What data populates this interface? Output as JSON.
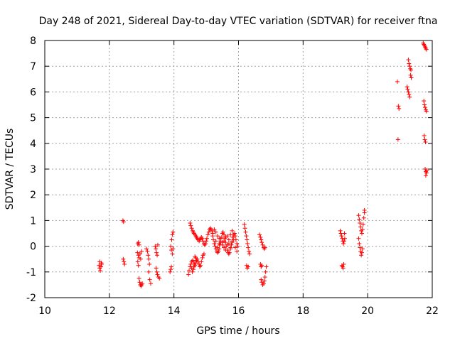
{
  "chart_data": {
    "type": "scatter",
    "title": "Day 248 of 2021, Sidereal Day-to-day VTEC variation (SDTVAR) for receiver ftna",
    "xlabel": "GPS time / hours",
    "ylabel": "SDTVAR / TECUs",
    "xlim": [
      10,
      22
    ],
    "ylim": [
      -2,
      8
    ],
    "x_ticks": [
      10,
      12,
      14,
      16,
      18,
      20,
      22
    ],
    "y_ticks": [
      -2,
      -1,
      0,
      1,
      2,
      3,
      4,
      5,
      6,
      7,
      8
    ],
    "x_tick_labels": [
      "10",
      "12",
      "14",
      "16",
      "18",
      "20",
      "22"
    ],
    "y_tick_labels": [
      "-2",
      "-1",
      "0",
      "1",
      "2",
      "3",
      "4",
      "5",
      "6",
      "7",
      "8"
    ],
    "grid": true,
    "marker": "+",
    "color": "#ff0000",
    "series": [
      {
        "name": "ftna",
        "points": [
          [
            11.68,
            -0.75
          ],
          [
            11.7,
            -0.85
          ],
          [
            11.72,
            -0.95
          ],
          [
            11.74,
            -0.8
          ],
          [
            11.76,
            -0.7
          ],
          [
            11.7,
            -0.6
          ],
          [
            11.75,
            -0.65
          ],
          [
            12.42,
            1.0
          ],
          [
            12.44,
            0.95
          ],
          [
            12.43,
            -0.5
          ],
          [
            12.45,
            -0.6
          ],
          [
            12.47,
            -0.7
          ],
          [
            12.88,
            0.1
          ],
          [
            12.9,
            0.15
          ],
          [
            12.92,
            0.05
          ],
          [
            12.87,
            -0.25
          ],
          [
            12.9,
            -0.35
          ],
          [
            12.92,
            -0.45
          ],
          [
            12.88,
            -0.6
          ],
          [
            12.9,
            -0.75
          ],
          [
            12.92,
            -1.25
          ],
          [
            12.94,
            -1.4
          ],
          [
            12.96,
            -1.5
          ],
          [
            12.98,
            -1.55
          ],
          [
            13.0,
            -1.5
          ],
          [
            13.02,
            -1.45
          ],
          [
            12.95,
            -0.3
          ],
          [
            12.97,
            -0.5
          ],
          [
            13.0,
            -0.2
          ],
          [
            13.15,
            -0.1
          ],
          [
            13.18,
            -0.2
          ],
          [
            13.2,
            -0.35
          ],
          [
            13.22,
            -0.5
          ],
          [
            13.24,
            -0.7
          ],
          [
            13.22,
            -1.0
          ],
          [
            13.25,
            -1.3
          ],
          [
            13.28,
            -1.45
          ],
          [
            13.42,
            0.0
          ],
          [
            13.44,
            -0.1
          ],
          [
            13.46,
            -0.25
          ],
          [
            13.48,
            -0.35
          ],
          [
            13.45,
            -0.85
          ],
          [
            13.47,
            -1.0
          ],
          [
            13.49,
            -1.1
          ],
          [
            13.52,
            -1.2
          ],
          [
            13.55,
            -1.25
          ],
          [
            13.5,
            0.05
          ],
          [
            13.88,
            -1.0
          ],
          [
            13.9,
            -0.9
          ],
          [
            13.92,
            -0.8
          ],
          [
            13.9,
            0.0
          ],
          [
            13.92,
            -0.15
          ],
          [
            13.93,
            0.25
          ],
          [
            13.95,
            0.45
          ],
          [
            13.97,
            0.55
          ],
          [
            13.95,
            -0.3
          ],
          [
            13.97,
            -0.1
          ],
          [
            14.45,
            -1.1
          ],
          [
            14.47,
            -0.95
          ],
          [
            14.5,
            -0.8
          ],
          [
            14.52,
            -0.7
          ],
          [
            14.55,
            -0.6
          ],
          [
            14.58,
            -0.55
          ],
          [
            14.6,
            -0.6
          ],
          [
            14.63,
            -0.7
          ],
          [
            14.65,
            -0.75
          ],
          [
            14.68,
            -0.65
          ],
          [
            14.7,
            -0.55
          ],
          [
            14.72,
            -0.5
          ],
          [
            14.75,
            -0.6
          ],
          [
            14.78,
            -0.7
          ],
          [
            14.8,
            -0.8
          ],
          [
            14.82,
            -0.75
          ],
          [
            14.85,
            -0.6
          ],
          [
            14.88,
            -0.45
          ],
          [
            14.9,
            -0.35
          ],
          [
            14.93,
            -0.3
          ],
          [
            14.5,
            0.9
          ],
          [
            14.52,
            0.8
          ],
          [
            14.55,
            0.7
          ],
          [
            14.58,
            0.6
          ],
          [
            14.6,
            0.55
          ],
          [
            14.62,
            0.5
          ],
          [
            14.65,
            0.45
          ],
          [
            14.68,
            0.4
          ],
          [
            14.7,
            0.35
          ],
          [
            14.72,
            0.3
          ],
          [
            14.75,
            0.25
          ],
          [
            14.78,
            0.2
          ],
          [
            14.8,
            0.25
          ],
          [
            14.82,
            0.3
          ],
          [
            14.85,
            0.35
          ],
          [
            14.88,
            0.3
          ],
          [
            14.9,
            0.2
          ],
          [
            14.93,
            0.1
          ],
          [
            14.95,
            0.05
          ],
          [
            14.98,
            0.1
          ],
          [
            15.0,
            0.2
          ],
          [
            15.02,
            0.3
          ],
          [
            15.05,
            0.45
          ],
          [
            15.08,
            0.55
          ],
          [
            15.1,
            0.65
          ],
          [
            15.13,
            0.7
          ],
          [
            15.15,
            0.65
          ],
          [
            15.18,
            0.6
          ],
          [
            15.2,
            0.5
          ],
          [
            14.55,
            -0.85
          ],
          [
            14.57,
            -1.0
          ],
          [
            14.6,
            -0.9
          ],
          [
            14.62,
            -0.8
          ],
          [
            14.65,
            -0.4
          ],
          [
            14.67,
            -0.45
          ],
          [
            15.2,
            0.4
          ],
          [
            15.22,
            0.25
          ],
          [
            15.25,
            0.1
          ],
          [
            15.28,
            0.0
          ],
          [
            15.3,
            -0.1
          ],
          [
            15.33,
            -0.2
          ],
          [
            15.35,
            -0.25
          ],
          [
            15.38,
            -0.2
          ],
          [
            15.4,
            -0.1
          ],
          [
            15.42,
            0.05
          ],
          [
            15.45,
            0.2
          ],
          [
            15.48,
            0.35
          ],
          [
            15.5,
            0.5
          ],
          [
            15.52,
            0.55
          ],
          [
            15.55,
            0.45
          ],
          [
            15.58,
            0.3
          ],
          [
            15.6,
            0.15
          ],
          [
            15.62,
            0.0
          ],
          [
            15.65,
            -0.15
          ],
          [
            15.68,
            -0.25
          ],
          [
            15.7,
            -0.3
          ],
          [
            15.72,
            -0.25
          ],
          [
            15.75,
            -0.1
          ],
          [
            15.78,
            0.05
          ],
          [
            15.8,
            0.2
          ],
          [
            15.82,
            0.35
          ],
          [
            15.85,
            0.45
          ],
          [
            15.88,
            0.5
          ],
          [
            15.9,
            0.4
          ],
          [
            15.92,
            0.25
          ],
          [
            15.95,
            0.1
          ],
          [
            15.97,
            0.0
          ],
          [
            15.25,
            0.65
          ],
          [
            15.3,
            0.55
          ],
          [
            15.35,
            0.4
          ],
          [
            15.4,
            0.3
          ],
          [
            15.45,
            0.15
          ],
          [
            15.5,
            0.05
          ],
          [
            15.55,
            -0.05
          ],
          [
            15.6,
            -0.15
          ],
          [
            15.65,
            0.05
          ],
          [
            15.7,
            0.25
          ],
          [
            15.75,
            0.45
          ],
          [
            15.8,
            0.6
          ],
          [
            15.85,
            0.25
          ],
          [
            15.9,
            -0.05
          ],
          [
            15.95,
            -0.2
          ],
          [
            15.35,
            -0.05
          ],
          [
            15.4,
            0.1
          ],
          [
            15.45,
            0.3
          ],
          [
            15.5,
            0.15
          ],
          [
            15.55,
            0.2
          ],
          [
            15.6,
            0.35
          ],
          [
            15.65,
            0.4
          ],
          [
            15.3,
            0.2
          ],
          [
            15.7,
            0.1
          ],
          [
            15.75,
            -0.05
          ],
          [
            15.8,
            0.15
          ],
          [
            16.18,
            0.85
          ],
          [
            16.2,
            0.7
          ],
          [
            16.22,
            0.55
          ],
          [
            16.24,
            0.4
          ],
          [
            16.26,
            0.25
          ],
          [
            16.28,
            0.1
          ],
          [
            16.3,
            -0.05
          ],
          [
            16.32,
            -0.2
          ],
          [
            16.34,
            -0.3
          ],
          [
            16.25,
            -0.75
          ],
          [
            16.27,
            -0.85
          ],
          [
            16.3,
            -0.8
          ],
          [
            16.65,
            0.45
          ],
          [
            16.68,
            0.35
          ],
          [
            16.7,
            0.25
          ],
          [
            16.72,
            0.15
          ],
          [
            16.75,
            0.05
          ],
          [
            16.78,
            -0.05
          ],
          [
            16.8,
            -0.1
          ],
          [
            16.82,
            -0.05
          ],
          [
            16.68,
            -0.7
          ],
          [
            16.7,
            -0.8
          ],
          [
            16.72,
            -0.75
          ],
          [
            16.7,
            -1.3
          ],
          [
            16.72,
            -1.4
          ],
          [
            16.75,
            -1.5
          ],
          [
            16.78,
            -1.45
          ],
          [
            16.8,
            -1.35
          ],
          [
            16.82,
            -1.2
          ],
          [
            16.84,
            -1.0
          ],
          [
            16.86,
            -0.8
          ],
          [
            19.15,
            0.6
          ],
          [
            19.17,
            0.5
          ],
          [
            19.19,
            0.4
          ],
          [
            19.21,
            0.3
          ],
          [
            19.23,
            0.2
          ],
          [
            19.25,
            0.1
          ],
          [
            19.27,
            0.2
          ],
          [
            19.29,
            0.3
          ],
          [
            19.2,
            -0.75
          ],
          [
            19.22,
            -0.8
          ],
          [
            19.24,
            -0.85
          ],
          [
            19.26,
            -0.7
          ],
          [
            19.28,
            0.5
          ],
          [
            19.72,
            1.2
          ],
          [
            19.74,
            1.05
          ],
          [
            19.76,
            0.9
          ],
          [
            19.78,
            0.75
          ],
          [
            19.8,
            0.6
          ],
          [
            19.82,
            0.5
          ],
          [
            19.84,
            0.65
          ],
          [
            19.86,
            0.85
          ],
          [
            19.88,
            1.1
          ],
          [
            19.9,
            1.3
          ],
          [
            19.9,
            1.4
          ],
          [
            19.72,
            0.3
          ],
          [
            19.74,
            0.1
          ],
          [
            19.76,
            -0.05
          ],
          [
            19.78,
            -0.2
          ],
          [
            19.8,
            -0.35
          ],
          [
            19.82,
            -0.25
          ],
          [
            19.84,
            -0.1
          ],
          [
            20.92,
            6.4
          ],
          [
            20.95,
            5.45
          ],
          [
            20.97,
            5.35
          ],
          [
            20.94,
            4.15
          ],
          [
            21.22,
            6.2
          ],
          [
            21.24,
            6.1
          ],
          [
            21.26,
            6.0
          ],
          [
            21.28,
            5.9
          ],
          [
            21.3,
            5.8
          ],
          [
            21.26,
            7.25
          ],
          [
            21.28,
            7.1
          ],
          [
            21.3,
            7.0
          ],
          [
            21.32,
            6.9
          ],
          [
            21.34,
            6.85
          ],
          [
            21.33,
            6.65
          ],
          [
            21.35,
            6.55
          ],
          [
            21.72,
            7.9
          ],
          [
            21.74,
            7.85
          ],
          [
            21.76,
            7.8
          ],
          [
            21.78,
            7.75
          ],
          [
            21.8,
            7.7
          ],
          [
            21.82,
            7.65
          ],
          [
            21.74,
            5.65
          ],
          [
            21.76,
            5.5
          ],
          [
            21.78,
            5.4
          ],
          [
            21.8,
            5.3
          ],
          [
            21.82,
            5.25
          ],
          [
            21.75,
            4.3
          ],
          [
            21.77,
            4.15
          ],
          [
            21.79,
            4.05
          ],
          [
            21.78,
            3.0
          ],
          [
            21.8,
            2.9
          ],
          [
            21.82,
            2.85
          ],
          [
            21.84,
            2.95
          ],
          [
            21.8,
            2.75
          ]
        ]
      }
    ]
  }
}
